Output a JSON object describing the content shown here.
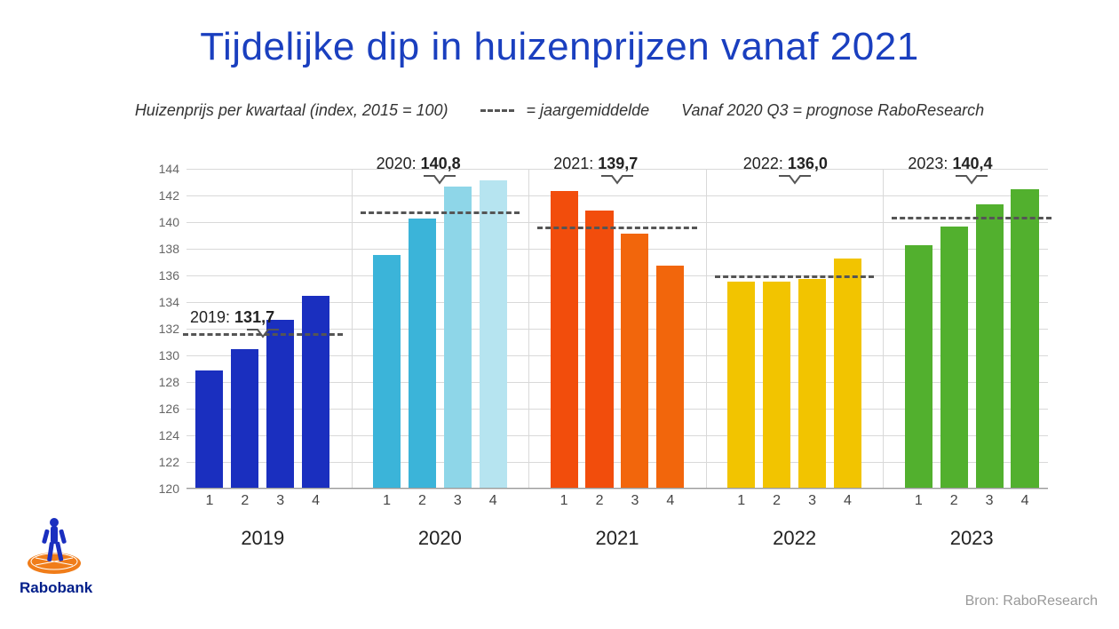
{
  "title": {
    "text": "Tijdelijke dip in huizenprijzen vanaf 2021",
    "color": "#1a3fbf",
    "fontsize": 44
  },
  "subtitle": {
    "left": "Huizenprijs per kwartaal (index, 2015 = 100)",
    "mid": "= jaargemiddelde",
    "right": "Vanaf 2020 Q3 = prognose RaboResearch",
    "color": "#333333",
    "fontsize": 18
  },
  "chart": {
    "type": "grouped-bar",
    "ylim": [
      120,
      144
    ],
    "ytick_step": 2,
    "grid_color": "#d9d9d9",
    "axis_color": "#999999",
    "tick_color": "#666666",
    "dash_color": "#555555",
    "bar_width_ratio": 0.78,
    "years": [
      {
        "year": "2019",
        "avg": 131.7,
        "avg_label": "2019: ",
        "avg_value": "131,7",
        "label_position": "above",
        "colors": [
          "#1a2fbf",
          "#1a2fbf",
          "#1a2fbf",
          "#1a2fbf"
        ],
        "values": [
          128.8,
          130.4,
          132.6,
          134.4
        ]
      },
      {
        "year": "2020",
        "avg": 140.8,
        "avg_label": "2020: ",
        "avg_value": "140,8",
        "label_position": "high",
        "colors": [
          "#3bb4d9",
          "#3bb4d9",
          "#8ed6e8",
          "#b6e4f0"
        ],
        "values": [
          137.5,
          140.2,
          142.6,
          143.1
        ]
      },
      {
        "year": "2021",
        "avg": 139.7,
        "avg_label": "2021: ",
        "avg_value": "139,7",
        "label_position": "high",
        "colors": [
          "#f24d0c",
          "#f24d0c",
          "#f2660c",
          "#f2660c"
        ],
        "values": [
          142.3,
          140.8,
          139.1,
          136.7
        ]
      },
      {
        "year": "2022",
        "avg": 136.0,
        "avg_label": "2022: ",
        "avg_value": "136,0",
        "label_position": "high-offset",
        "colors": [
          "#f2c400",
          "#f2c400",
          "#f2c400",
          "#f2c400"
        ],
        "values": [
          135.5,
          135.5,
          135.7,
          137.2
        ]
      },
      {
        "year": "2023",
        "avg": 140.4,
        "avg_label": "2023: ",
        "avg_value": "140,4",
        "label_position": "high",
        "colors": [
          "#52b02e",
          "#52b02e",
          "#52b02e",
          "#52b02e"
        ],
        "values": [
          138.2,
          139.6,
          141.3,
          142.4
        ]
      }
    ],
    "quarters": [
      "1",
      "2",
      "3",
      "4"
    ]
  },
  "source": {
    "text": "Bron: RaboResearch",
    "color": "#999999"
  },
  "logo": {
    "text": "Rabobank",
    "color": "#001e8a",
    "disc_color": "#f07d1a",
    "figure_color": "#1a2fbf"
  }
}
